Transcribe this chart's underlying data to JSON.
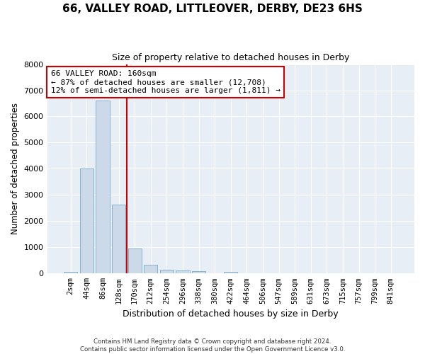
{
  "title": "66, VALLEY ROAD, LITTLEOVER, DERBY, DE23 6HS",
  "subtitle": "Size of property relative to detached houses in Derby",
  "xlabel": "Distribution of detached houses by size in Derby",
  "ylabel": "Number of detached properties",
  "bar_labels": [
    "2sqm",
    "44sqm",
    "86sqm",
    "128sqm",
    "170sqm",
    "212sqm",
    "254sqm",
    "296sqm",
    "338sqm",
    "380sqm",
    "422sqm",
    "464sqm",
    "506sqm",
    "547sqm",
    "589sqm",
    "631sqm",
    "673sqm",
    "715sqm",
    "757sqm",
    "799sqm",
    "841sqm"
  ],
  "bar_values": [
    55,
    4000,
    6600,
    2620,
    950,
    330,
    130,
    110,
    80,
    0,
    70,
    0,
    0,
    0,
    0,
    0,
    0,
    0,
    0,
    0,
    0
  ],
  "bar_color": "#ccd9e8",
  "bar_edge_color": "#7aaac8",
  "vline_pos": 3.5,
  "vline_color": "#cc0000",
  "annotation_text": "66 VALLEY ROAD: 160sqm\n← 87% of detached houses are smaller (12,708)\n12% of semi-detached houses are larger (1,811) →",
  "annotation_box_color": "#ffffff",
  "annotation_box_edge": "#cc0000",
  "ylim": [
    0,
    8000
  ],
  "yticks": [
    0,
    1000,
    2000,
    3000,
    4000,
    5000,
    6000,
    7000,
    8000
  ],
  "footer_line1": "Contains HM Land Registry data © Crown copyright and database right 2024.",
  "footer_line2": "Contains public sector information licensed under the Open Government Licence v3.0.",
  "bg_color": "#ffffff",
  "plot_bg_color": "#e8eef5",
  "grid_color": "#ffffff",
  "title_fontsize": 11,
  "subtitle_fontsize": 9
}
